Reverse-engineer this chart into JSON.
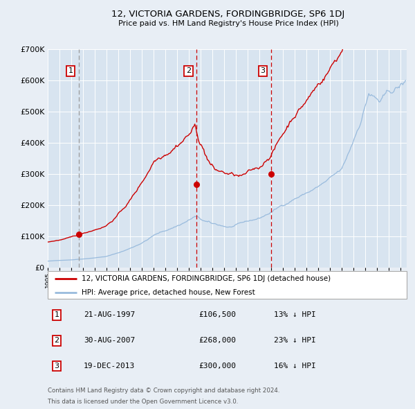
{
  "title": "12, VICTORIA GARDENS, FORDINGBRIDGE, SP6 1DJ",
  "subtitle": "Price paid vs. HM Land Registry's House Price Index (HPI)",
  "bg_color": "#e8eef5",
  "plot_bg_color": "#d8e4f0",
  "red_color": "#cc0000",
  "blue_color": "#99bbdd",
  "grid_color": "#ffffff",
  "purchase_info": [
    {
      "label": "1",
      "date": "21-AUG-1997",
      "price": "£106,500",
      "hpi": "13% ↓ HPI"
    },
    {
      "label": "2",
      "date": "30-AUG-2007",
      "price": "£268,000",
      "hpi": "23% ↓ HPI"
    },
    {
      "label": "3",
      "date": "19-DEC-2013",
      "price": "£300,000",
      "hpi": "16% ↓ HPI"
    }
  ],
  "legend_entries": [
    "12, VICTORIA GARDENS, FORDINGBRIDGE, SP6 1DJ (detached house)",
    "HPI: Average price, detached house, New Forest"
  ],
  "footer": "Contains HM Land Registry data © Crown copyright and database right 2024.\nThis data is licensed under the Open Government Licence v3.0.",
  "purchase_year_floats": [
    1997.638,
    2007.663,
    2013.966
  ],
  "purchase_prices_actual": [
    106500,
    268000,
    300000
  ],
  "vline_x": [
    1997.638,
    2007.663,
    2013.966
  ],
  "ylim": [
    0,
    700000
  ],
  "yticks": [
    0,
    100000,
    200000,
    300000,
    400000,
    500000,
    600000,
    700000
  ],
  "xlim": [
    1995,
    2025.5
  ]
}
